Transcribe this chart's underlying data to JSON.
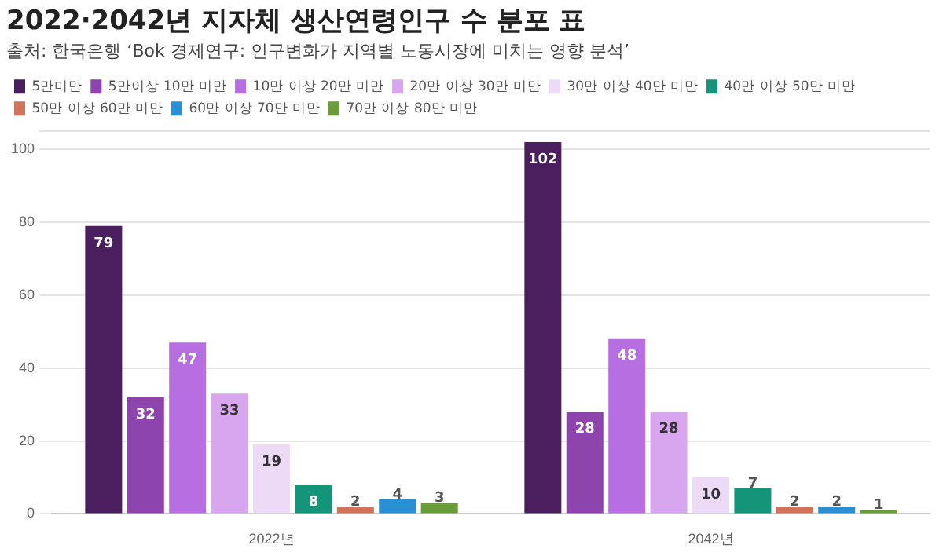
{
  "chart_data": {
    "type": "bar",
    "title": "2022·2042년 지자체 생산연령인구 수 분포 표",
    "subtitle": "출처: 한국은행 ‘Bok 경제연구: 인구변화가 지역별 노동시장에 미치는 영향 분석’",
    "categories": [
      "2022년",
      "2042년"
    ],
    "series": [
      {
        "name": "5만미만",
        "color": "#4b1f5e",
        "values": [
          79,
          102
        ]
      },
      {
        "name": "5만이상 10만 미만",
        "color": "#8e44ad",
        "values": [
          32,
          28
        ]
      },
      {
        "name": "10만 이상 20만 미만",
        "color": "#b66ee0",
        "values": [
          47,
          48
        ]
      },
      {
        "name": "20만 이상 30만 미만",
        "color": "#d7a6ef",
        "values": [
          33,
          28
        ]
      },
      {
        "name": "30만 이상 40만 미만",
        "color": "#ecdaf7",
        "values": [
          19,
          10
        ]
      },
      {
        "name": "40만 이상 50만 미만",
        "color": "#14957a",
        "values": [
          8,
          7
        ]
      },
      {
        "name": "50만 이상 60만 미만",
        "color": "#d2735c",
        "values": [
          2,
          2
        ]
      },
      {
        "name": "60만 이상 70만 미만",
        "color": "#2b8fd3",
        "values": [
          4,
          2
        ]
      },
      {
        "name": "70만 이상 80만 미만",
        "color": "#6a9c3a",
        "values": [
          3,
          1
        ]
      }
    ],
    "ylim": [
      0,
      105
    ],
    "yticks": [
      0,
      20,
      40,
      60,
      80,
      100,
      {
        "value": 105,
        "label": null
      }
    ],
    "grid": "y",
    "legend": "top left",
    "data_labels": true
  }
}
